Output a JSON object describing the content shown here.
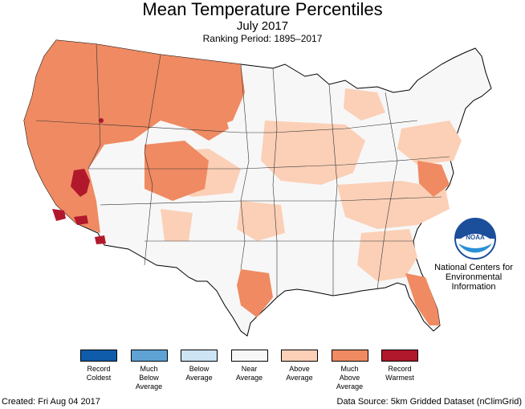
{
  "title": "Mean Temperature Percentiles",
  "subtitle": "July 2017",
  "ranking_period": "Ranking Period: 1895–2017",
  "agency": {
    "logo_text": "NOAA",
    "line1": "National Centers for",
    "line2": "Environmental",
    "line3": "Information"
  },
  "legend": [
    {
      "label_lines": [
        "Record",
        "Coldest"
      ],
      "color": "#0f5cab"
    },
    {
      "label_lines": [
        "Much",
        "Below",
        "Average"
      ],
      "color": "#5fa3d5"
    },
    {
      "label_lines": [
        "Below",
        "Average"
      ],
      "color": "#cde4f4"
    },
    {
      "label_lines": [
        "Near",
        "Average"
      ],
      "color": "#f7f7f7"
    },
    {
      "label_lines": [
        "Above",
        "Average"
      ],
      "color": "#fbd0b7"
    },
    {
      "label_lines": [
        "Much",
        "Above",
        "Average"
      ],
      "color": "#ef8a62"
    },
    {
      "label_lines": [
        "Record",
        "Warmest"
      ],
      "color": "#b2182b"
    }
  ],
  "footer": {
    "created": "Created: Fri Aug 04 2017",
    "source": "Data Source: 5km Gridded Dataset (nClimGrid)"
  }
}
